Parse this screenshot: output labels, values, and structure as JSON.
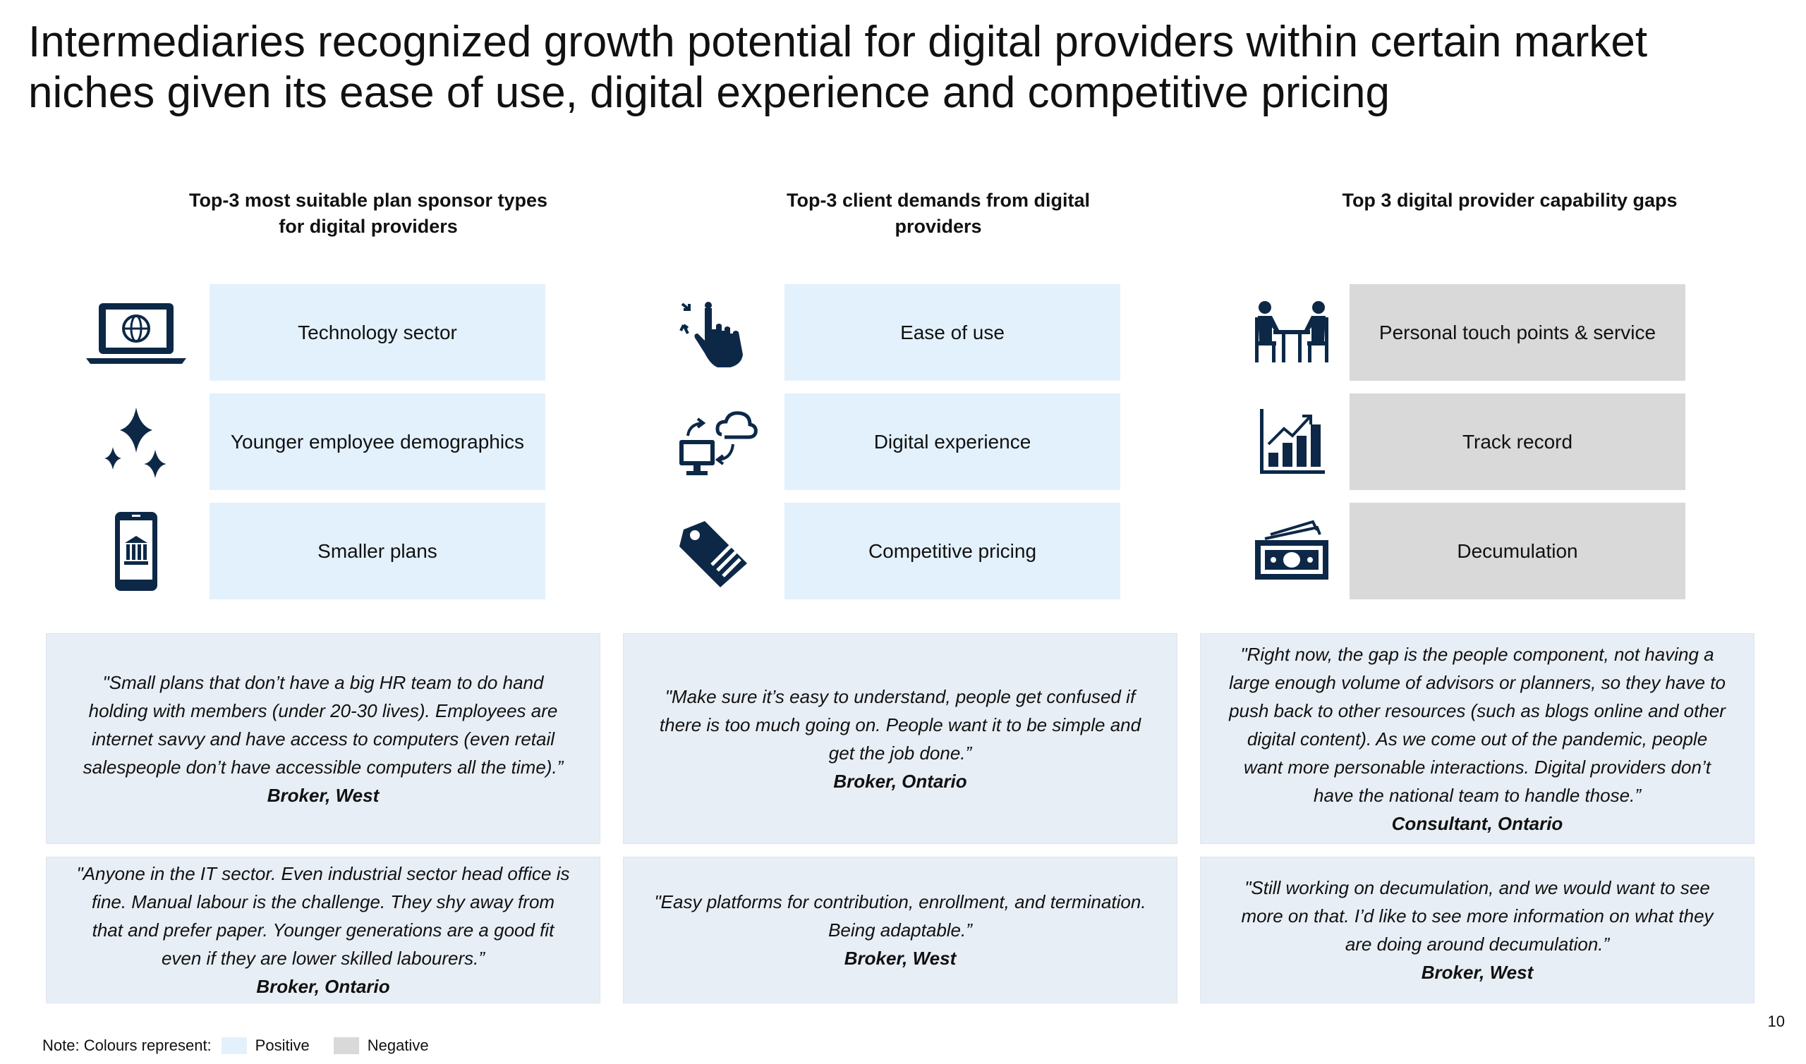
{
  "title": "Intermediaries recognized growth potential for digital providers within certain market niches given its ease of use, digital experience and competitive pricing",
  "colors": {
    "positive": "#e3f1fc",
    "negative": "#d9d9d9",
    "icon": "#0d2847",
    "quote_bg": "#e8eef5"
  },
  "columns": [
    {
      "heading": "Top-3 most suitable plan sponsor types for digital providers",
      "items": [
        {
          "icon": "laptop-globe-icon",
          "label": "Technology sector"
        },
        {
          "icon": "sparkles-icon",
          "label": "Younger employee demographics"
        },
        {
          "icon": "mobile-bank-icon",
          "label": "Smaller plans"
        }
      ],
      "quotes": [
        {
          "text": "\"Small plans that don’t have a big HR team to do hand holding with members (under 20-30 lives). Employees are internet savvy and have access to computers (even retail salespeople don’t have accessible computers all the time).”",
          "source": "Broker, West"
        },
        {
          "text": "\"Anyone in the IT sector. Even industrial sector head office is fine. Manual labour is the challenge. They shy away from that and prefer paper. Younger generations are a good fit even if they are lower skilled labourers.”",
          "source": "Broker, Ontario"
        }
      ]
    },
    {
      "heading": "Top-3 client demands from digital providers",
      "items": [
        {
          "icon": "touch-hand-icon",
          "label": "Ease of use"
        },
        {
          "icon": "cloud-sync-computer-icon",
          "label": "Digital experience"
        },
        {
          "icon": "price-tag-icon",
          "label": "Competitive pricing"
        }
      ],
      "quotes": [
        {
          "text": "\"Make sure it’s easy to understand, people get confused if there is too much going on. People want it to be simple and get the job done.”",
          "source": "Broker, Ontario"
        },
        {
          "text": "\"Easy platforms for contribution, enrollment, and termination. Being adaptable.”",
          "source": "Broker, West"
        }
      ]
    },
    {
      "heading": "Top 3 digital provider capability gaps",
      "items": [
        {
          "icon": "meeting-people-icon",
          "label": "Personal touch points & service"
        },
        {
          "icon": "growth-chart-icon",
          "label": "Track record"
        },
        {
          "icon": "money-cash-icon",
          "label": "Decumulation"
        }
      ],
      "quotes": [
        {
          "text": "\"Right now, the gap is the people component, not having a large enough volume of advisors or planners, so they have to push back to other resources (such as blogs online and other digital content). As we come out of the pandemic, people want more personable interactions. Digital providers don’t have the national team to handle those.”",
          "source": "Consultant, Ontario"
        },
        {
          "text": "\"Still working on decumulation, and we would want to see more on that. I’d like to see more information on what they are doing around decumulation.”",
          "source": "Broker, West"
        }
      ]
    }
  ],
  "note": {
    "label": "Note: Colours represent:",
    "positive": "Positive",
    "negative": "Negative"
  },
  "page_number": "10"
}
